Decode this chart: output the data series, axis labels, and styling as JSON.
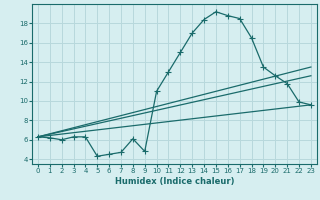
{
  "title": "",
  "xlabel": "Humidex (Indice chaleur)",
  "bg_color": "#d6eef0",
  "grid_color": "#b8d8dc",
  "line_color": "#1a6b6b",
  "xlim": [
    -0.5,
    23.5
  ],
  "ylim": [
    3.5,
    20.0
  ],
  "xticks": [
    0,
    1,
    2,
    3,
    4,
    5,
    6,
    7,
    8,
    9,
    10,
    11,
    12,
    13,
    14,
    15,
    16,
    17,
    18,
    19,
    20,
    21,
    22,
    23
  ],
  "yticks": [
    4,
    6,
    8,
    10,
    12,
    14,
    16,
    18
  ],
  "series1_x": [
    0,
    1,
    2,
    3,
    4,
    5,
    6,
    7,
    8,
    9,
    10,
    11,
    12,
    13,
    14,
    15,
    16,
    17,
    18,
    19,
    20,
    21,
    22,
    23
  ],
  "series1_y": [
    6.3,
    6.2,
    6.0,
    6.3,
    6.3,
    4.3,
    4.5,
    4.7,
    6.1,
    4.8,
    11.0,
    13.0,
    15.0,
    17.0,
    18.4,
    19.2,
    18.8,
    18.5,
    16.5,
    13.5,
    12.6,
    11.8,
    9.9,
    9.6
  ],
  "series2_x": [
    0,
    23
  ],
  "series2_y": [
    6.3,
    9.6
  ],
  "series3_x": [
    0,
    23
  ],
  "series3_y": [
    6.3,
    12.6
  ],
  "series4_x": [
    0,
    23
  ],
  "series4_y": [
    6.3,
    13.5
  ]
}
